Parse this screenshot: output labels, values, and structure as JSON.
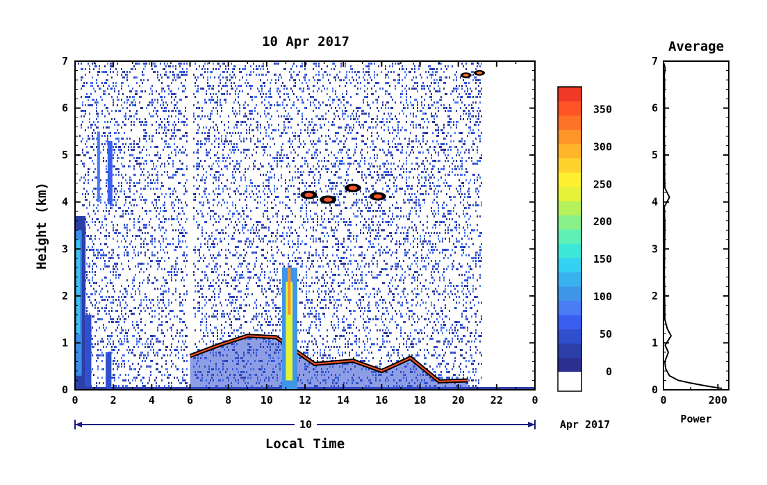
{
  "chart_data": [
    {
      "type": "heatmap",
      "title": "10 Apr 2017",
      "xlabel": "Local Time",
      "ylabel": "Height (km)",
      "xlim": [
        0,
        24
      ],
      "ylim": [
        0,
        7
      ],
      "x_ticks": [
        "0",
        "2",
        "4",
        "6",
        "8",
        "10",
        "12",
        "14",
        "16",
        "18",
        "20",
        "22",
        "0"
      ],
      "y_ticks": [
        "0",
        "1",
        "2",
        "3",
        "4",
        "5",
        "6",
        "7"
      ],
      "date_axis": {
        "day_label": "10",
        "month_label": "Apr 2017"
      },
      "colorbar": {
        "ticks": [
          "0",
          "50",
          "100",
          "150",
          "200",
          "250",
          "300",
          "350"
        ],
        "range": [
          0,
          380
        ],
        "colors": [
          "#2b2f8f",
          "#2c3fa8",
          "#2f4fcf",
          "#3a5ff0",
          "#4a7cf5",
          "#3f95e8",
          "#38b2ee",
          "#33d1f2",
          "#3ee8d8",
          "#5ef0b4",
          "#8af08a",
          "#b6f05a",
          "#e4f23a",
          "#fff033",
          "#ffd32e",
          "#ffb52a",
          "#ff9428",
          "#ff7326",
          "#ff5426",
          "#f03a26"
        ]
      },
      "features": [
        {
          "name": "boundary-layer",
          "x": [
            6.0,
            7.5,
            9.0,
            10.5,
            12.5,
            14.5,
            16.0,
            17.5,
            19.0,
            20.5
          ],
          "height": [
            0.72,
            0.95,
            1.15,
            1.12,
            0.55,
            0.62,
            0.4,
            0.68,
            0.18,
            0.2
          ]
        },
        {
          "name": "cloud-layer-4km",
          "x": [
            12.2,
            13.2,
            14.5,
            15.8
          ],
          "height": [
            4.15,
            4.05,
            4.3,
            4.12
          ]
        },
        {
          "name": "cloud-top-6.8km",
          "x": [
            20.4,
            21.1
          ],
          "height": [
            6.7,
            6.75
          ]
        }
      ]
    },
    {
      "type": "line",
      "title": "Average",
      "xlabel": "Power",
      "ylabel": "",
      "xlim": [
        0,
        240
      ],
      "ylim": [
        0,
        7
      ],
      "x_ticks": [
        "0",
        "200"
      ],
      "y_ticks": [
        "0",
        "1",
        "2",
        "3",
        "4",
        "5",
        "6",
        "7"
      ],
      "series": [
        {
          "x": [
            215,
            180,
            140,
            95,
            55,
            22,
            8,
            5,
            18,
            6,
            28,
            14,
            5,
            4,
            3,
            4,
            5,
            3,
            22,
            5,
            4,
            4,
            3,
            4,
            3,
            4,
            3,
            6,
            2
          ],
          "y": [
            0.03,
            0.06,
            0.1,
            0.15,
            0.2,
            0.3,
            0.45,
            0.6,
            0.8,
            0.95,
            1.15,
            1.3,
            1.5,
            2.0,
            2.5,
            3.0,
            3.5,
            3.9,
            4.1,
            4.3,
            4.6,
            5.0,
            5.5,
            6.0,
            6.3,
            6.5,
            6.7,
            6.85,
            6.95
          ]
        }
      ]
    }
  ]
}
